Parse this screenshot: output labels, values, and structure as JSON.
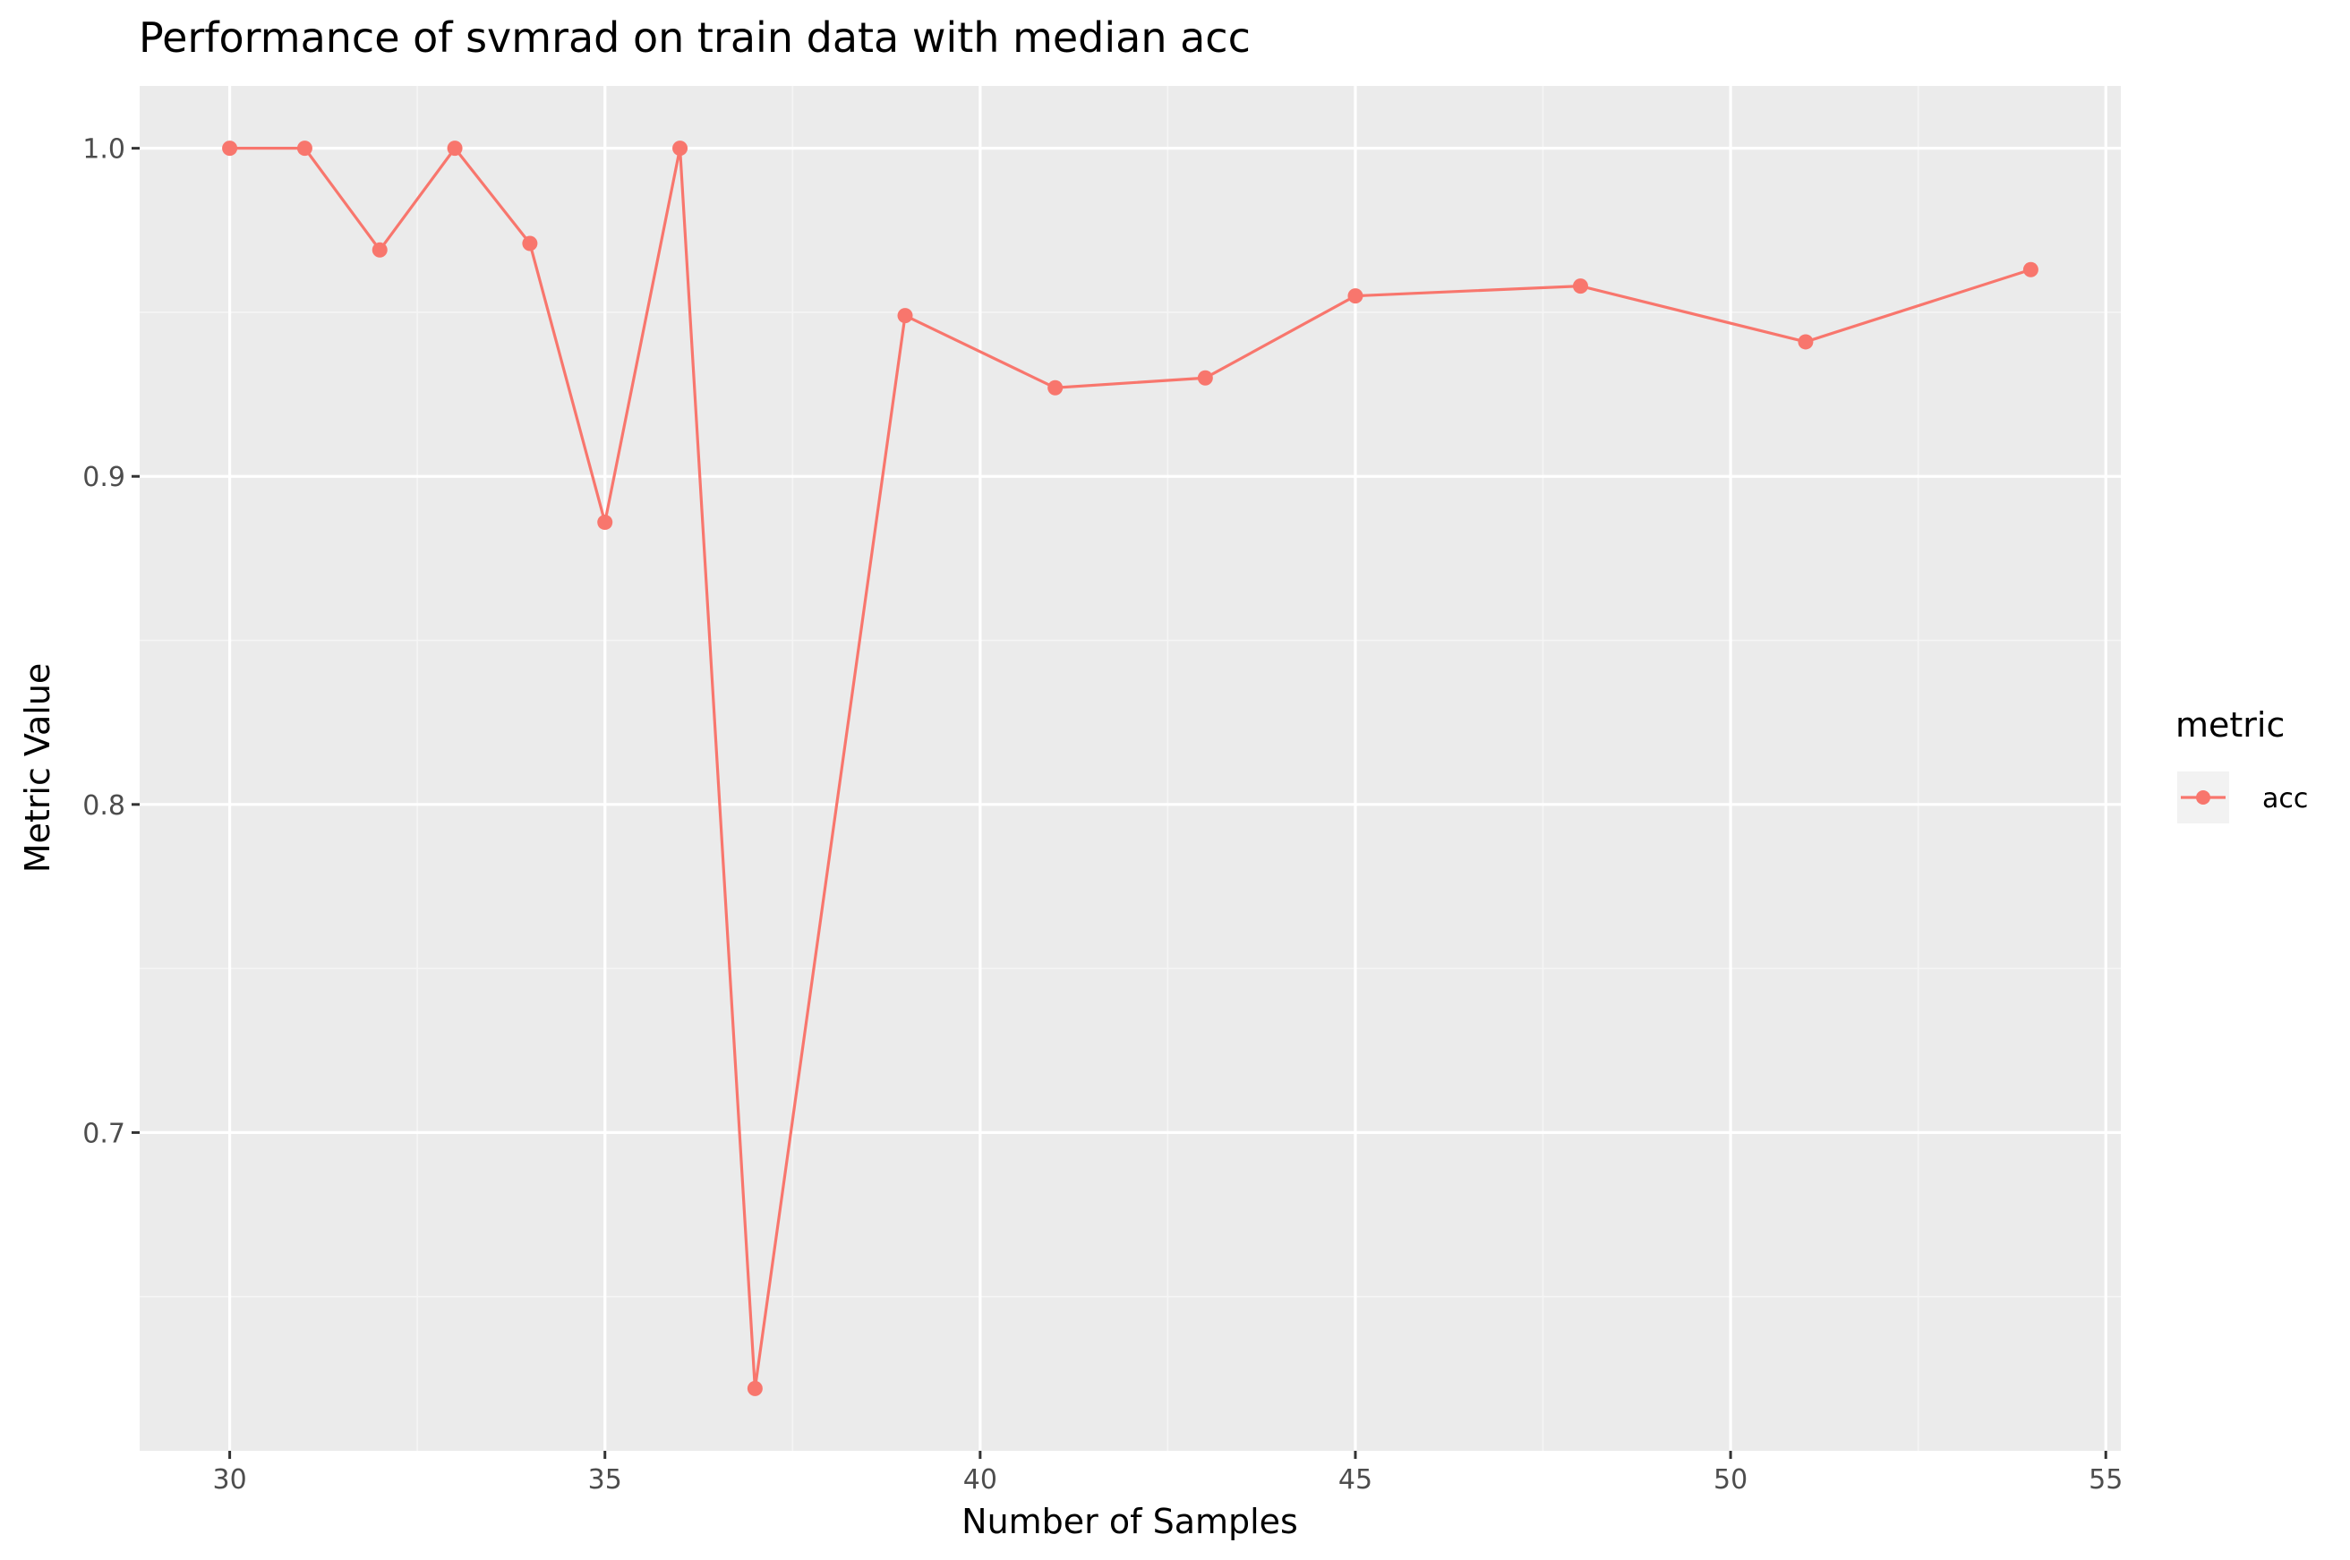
{
  "chart_data": {
    "type": "line",
    "title": "Performance of svmrad on train data with median acc",
    "xlabel": "Number of Samples",
    "ylabel": "Metric Value",
    "xlim": [
      28.8,
      55.2
    ],
    "ylim": [
      0.603,
      1.019
    ],
    "x_ticks": [
      30,
      35,
      40,
      45,
      50,
      55
    ],
    "y_ticks": [
      0.7,
      0.8,
      0.9,
      1.0
    ],
    "x_tick_labels": [
      "30",
      "35",
      "40",
      "45",
      "50",
      "55"
    ],
    "y_tick_labels": [
      "0.7",
      "0.8",
      "0.9",
      "1.0"
    ],
    "grid": true,
    "legend": {
      "title": "metric",
      "placement": "right"
    },
    "series": [
      {
        "name": "acc",
        "color": "#F8766D",
        "x": [
          30,
          31,
          32,
          33,
          34,
          35,
          36,
          37,
          39,
          41,
          43,
          45,
          48,
          51,
          54
        ],
        "y": [
          1.0,
          1.0,
          0.969,
          1.0,
          0.971,
          0.886,
          1.0,
          0.622,
          0.949,
          0.927,
          0.93,
          0.955,
          0.958,
          0.941,
          0.963
        ]
      }
    ]
  },
  "colors": {
    "panel_background": "#EBEBEB",
    "grid_major": "#FFFFFF",
    "grid_minor": "#F5F5F5",
    "series": "#F8766D"
  }
}
